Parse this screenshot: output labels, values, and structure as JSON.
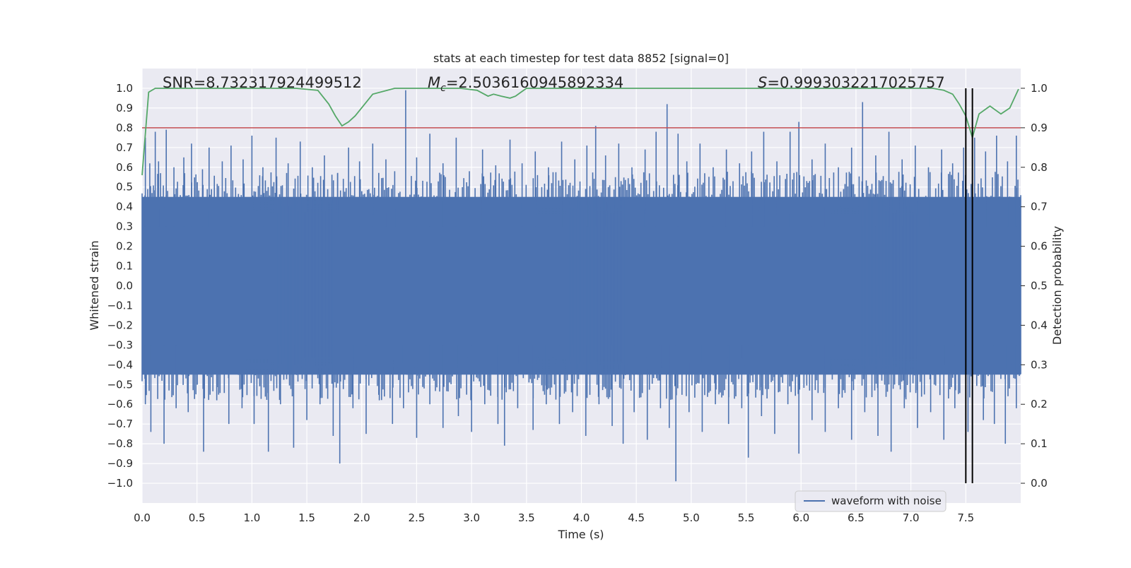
{
  "chart_data": {
    "type": "line",
    "title": "stats at each timestep for test data 8852 [signal=0]",
    "xlabel": "Time (s)",
    "ylabel": "Whitened strain",
    "y2label": "Detection probability",
    "xlim": [
      0.0,
      8.0
    ],
    "ylim": [
      -1.1,
      1.1
    ],
    "y2lim": [
      -0.05,
      1.05
    ],
    "grid": true,
    "x_ticks": [
      "0.0",
      "0.5",
      "1.0",
      "1.5",
      "2.0",
      "2.5",
      "3.0",
      "3.5",
      "4.0",
      "4.5",
      "5.0",
      "5.5",
      "6.0",
      "6.5",
      "7.0",
      "7.5"
    ],
    "y_ticks": [
      "1.0",
      "0.9",
      "0.8",
      "0.7",
      "0.6",
      "0.5",
      "0.4",
      "0.3",
      "0.2",
      "0.1",
      "0.0",
      "−0.1",
      "−0.2",
      "−0.3",
      "−0.4",
      "−0.5",
      "−0.6",
      "−0.7",
      "−0.8",
      "−0.9",
      "−1.0"
    ],
    "y2_ticks": [
      "1.0",
      "0.9",
      "0.8",
      "0.7",
      "0.6",
      "0.5",
      "0.4",
      "0.3",
      "0.2",
      "0.1",
      "0.0"
    ],
    "annotations": {
      "snr": "SNR=8.732317924499512",
      "mc_symbol": "M",
      "mc_sub": "c",
      "mc_value": "=2.5036160945892334",
      "s_symbol": "S",
      "s_value": "=0.9993032217025757"
    },
    "legend": {
      "placement": "lower-right",
      "entries": [
        "waveform with noise"
      ]
    },
    "threshold_line": {
      "y2": 0.9,
      "color": "#c44e52"
    },
    "detection_markers_x": [
      7.5,
      7.56
    ],
    "series": [
      {
        "name": "waveform with noise",
        "axis": "left",
        "color": "#4c72b0",
        "envelope_upper_typical": 0.45,
        "envelope_lower_typical": -0.45,
        "spikes_up": [
          {
            "t": 0.03,
            "v": 0.75
          },
          {
            "t": 0.07,
            "v": 0.62
          },
          {
            "t": 0.12,
            "v": 0.78
          },
          {
            "t": 0.15,
            "v": 0.63
          },
          {
            "t": 0.22,
            "v": 0.79
          },
          {
            "t": 0.29,
            "v": 0.6
          },
          {
            "t": 0.38,
            "v": 0.65
          },
          {
            "t": 0.45,
            "v": 0.72
          },
          {
            "t": 0.55,
            "v": 0.59
          },
          {
            "t": 0.61,
            "v": 0.7
          },
          {
            "t": 0.73,
            "v": 0.63
          },
          {
            "t": 0.81,
            "v": 0.71
          },
          {
            "t": 0.92,
            "v": 0.64
          },
          {
            "t": 1.0,
            "v": 0.76
          },
          {
            "t": 1.1,
            "v": 0.6
          },
          {
            "t": 1.22,
            "v": 0.75
          },
          {
            "t": 1.33,
            "v": 0.62
          },
          {
            "t": 1.44,
            "v": 0.73
          },
          {
            "t": 1.55,
            "v": 0.6
          },
          {
            "t": 1.66,
            "v": 0.66
          },
          {
            "t": 1.78,
            "v": 0.57
          },
          {
            "t": 1.88,
            "v": 0.7
          },
          {
            "t": 1.98,
            "v": 0.63
          },
          {
            "t": 2.1,
            "v": 0.72
          },
          {
            "t": 2.22,
            "v": 0.64
          },
          {
            "t": 2.3,
            "v": 0.58
          },
          {
            "t": 2.4,
            "v": 0.99
          },
          {
            "t": 2.5,
            "v": 0.65
          },
          {
            "t": 2.62,
            "v": 0.77
          },
          {
            "t": 2.74,
            "v": 0.62
          },
          {
            "t": 2.86,
            "v": 0.75
          },
          {
            "t": 2.98,
            "v": 0.58
          },
          {
            "t": 3.1,
            "v": 0.69
          },
          {
            "t": 3.22,
            "v": 0.61
          },
          {
            "t": 3.35,
            "v": 0.74
          },
          {
            "t": 3.46,
            "v": 0.62
          },
          {
            "t": 3.58,
            "v": 0.68
          },
          {
            "t": 3.7,
            "v": 0.6
          },
          {
            "t": 3.82,
            "v": 0.73
          },
          {
            "t": 3.94,
            "v": 0.64
          },
          {
            "t": 4.05,
            "v": 0.71
          },
          {
            "t": 4.13,
            "v": 0.81
          },
          {
            "t": 4.22,
            "v": 0.66
          },
          {
            "t": 4.34,
            "v": 0.72
          },
          {
            "t": 4.46,
            "v": 0.6
          },
          {
            "t": 4.58,
            "v": 0.69
          },
          {
            "t": 4.68,
            "v": 0.78
          },
          {
            "t": 4.78,
            "v": 0.92
          },
          {
            "t": 4.88,
            "v": 0.77
          },
          {
            "t": 4.96,
            "v": 0.63
          },
          {
            "t": 5.08,
            "v": 0.72
          },
          {
            "t": 5.2,
            "v": 0.6
          },
          {
            "t": 5.32,
            "v": 0.69
          },
          {
            "t": 5.44,
            "v": 0.62
          },
          {
            "t": 5.55,
            "v": 0.68
          },
          {
            "t": 5.66,
            "v": 0.78
          },
          {
            "t": 5.78,
            "v": 0.63
          },
          {
            "t": 5.9,
            "v": 0.78
          },
          {
            "t": 5.98,
            "v": 0.83
          },
          {
            "t": 6.1,
            "v": 0.64
          },
          {
            "t": 6.22,
            "v": 0.72
          },
          {
            "t": 6.34,
            "v": 0.6
          },
          {
            "t": 6.46,
            "v": 0.7
          },
          {
            "t": 6.56,
            "v": 0.93
          },
          {
            "t": 6.68,
            "v": 0.66
          },
          {
            "t": 6.8,
            "v": 0.78
          },
          {
            "t": 6.92,
            "v": 0.64
          },
          {
            "t": 7.04,
            "v": 0.71
          },
          {
            "t": 7.16,
            "v": 0.6
          },
          {
            "t": 7.28,
            "v": 0.69
          },
          {
            "t": 7.38,
            "v": 0.62
          },
          {
            "t": 7.48,
            "v": 0.7
          },
          {
            "t": 7.58,
            "v": 0.75
          },
          {
            "t": 7.68,
            "v": 0.68
          },
          {
            "t": 7.78,
            "v": 0.76
          },
          {
            "t": 7.88,
            "v": 0.63
          },
          {
            "t": 7.96,
            "v": 0.76
          }
        ],
        "spikes_down": [
          {
            "t": 0.03,
            "v": -0.6
          },
          {
            "t": 0.08,
            "v": -0.74
          },
          {
            "t": 0.2,
            "v": -0.8
          },
          {
            "t": 0.31,
            "v": -0.62
          },
          {
            "t": 0.42,
            "v": -0.64
          },
          {
            "t": 0.56,
            "v": -0.84
          },
          {
            "t": 0.68,
            "v": -0.58
          },
          {
            "t": 0.79,
            "v": -0.7
          },
          {
            "t": 0.91,
            "v": -0.62
          },
          {
            "t": 1.02,
            "v": -0.7
          },
          {
            "t": 1.15,
            "v": -0.84
          },
          {
            "t": 1.26,
            "v": -0.6
          },
          {
            "t": 1.38,
            "v": -0.82
          },
          {
            "t": 1.5,
            "v": -0.68
          },
          {
            "t": 1.62,
            "v": -0.6
          },
          {
            "t": 1.74,
            "v": -0.76
          },
          {
            "t": 1.8,
            "v": -0.9
          },
          {
            "t": 1.92,
            "v": -0.62
          },
          {
            "t": 2.04,
            "v": -0.75
          },
          {
            "t": 2.16,
            "v": -0.58
          },
          {
            "t": 2.28,
            "v": -0.7
          },
          {
            "t": 2.38,
            "v": -0.62
          },
          {
            "t": 2.5,
            "v": -0.77
          },
          {
            "t": 2.62,
            "v": -0.6
          },
          {
            "t": 2.74,
            "v": -0.72
          },
          {
            "t": 2.88,
            "v": -0.66
          },
          {
            "t": 3.0,
            "v": -0.74
          },
          {
            "t": 3.12,
            "v": -0.6
          },
          {
            "t": 3.24,
            "v": -0.7
          },
          {
            "t": 3.3,
            "v": -0.81
          },
          {
            "t": 3.42,
            "v": -0.62
          },
          {
            "t": 3.56,
            "v": -0.73
          },
          {
            "t": 3.68,
            "v": -0.6
          },
          {
            "t": 3.8,
            "v": -0.7
          },
          {
            "t": 3.92,
            "v": -0.64
          },
          {
            "t": 4.04,
            "v": -0.76
          },
          {
            "t": 4.16,
            "v": -0.6
          },
          {
            "t": 4.28,
            "v": -0.71
          },
          {
            "t": 4.38,
            "v": -0.8
          },
          {
            "t": 4.48,
            "v": -0.64
          },
          {
            "t": 4.6,
            "v": -0.78
          },
          {
            "t": 4.72,
            "v": -0.62
          },
          {
            "t": 4.8,
            "v": -0.72
          },
          {
            "t": 4.86,
            "v": -0.99
          },
          {
            "t": 4.98,
            "v": -0.64
          },
          {
            "t": 5.1,
            "v": -0.74
          },
          {
            "t": 5.22,
            "v": -0.6
          },
          {
            "t": 5.34,
            "v": -0.7
          },
          {
            "t": 5.46,
            "v": -0.62
          },
          {
            "t": 5.52,
            "v": -0.87
          },
          {
            "t": 5.64,
            "v": -0.66
          },
          {
            "t": 5.76,
            "v": -0.75
          },
          {
            "t": 5.88,
            "v": -0.6
          },
          {
            "t": 5.98,
            "v": -0.85
          },
          {
            "t": 6.1,
            "v": -0.68
          },
          {
            "t": 6.22,
            "v": -0.74
          },
          {
            "t": 6.34,
            "v": -0.62
          },
          {
            "t": 6.46,
            "v": -0.78
          },
          {
            "t": 6.58,
            "v": -0.64
          },
          {
            "t": 6.7,
            "v": -0.76
          },
          {
            "t": 6.82,
            "v": -0.84
          },
          {
            "t": 6.94,
            "v": -0.62
          },
          {
            "t": 7.06,
            "v": -0.72
          },
          {
            "t": 7.18,
            "v": -0.64
          },
          {
            "t": 7.3,
            "v": -0.78
          },
          {
            "t": 7.4,
            "v": -0.62
          },
          {
            "t": 7.52,
            "v": -0.74
          },
          {
            "t": 7.56,
            "v": -0.83
          },
          {
            "t": 7.66,
            "v": -0.68
          },
          {
            "t": 7.76,
            "v": -0.7
          },
          {
            "t": 7.86,
            "v": -0.8
          },
          {
            "t": 7.96,
            "v": -0.62
          }
        ]
      },
      {
        "name": "detection probability",
        "axis": "right",
        "color": "#55a868",
        "x": [
          0.0,
          0.06,
          0.12,
          0.3,
          0.6,
          1.0,
          1.4,
          1.6,
          1.7,
          1.76,
          1.82,
          1.88,
          1.94,
          2.1,
          2.3,
          2.6,
          2.9,
          3.05,
          3.15,
          3.2,
          3.27,
          3.35,
          3.4,
          3.45,
          3.5,
          3.6,
          3.8,
          4.2,
          4.6,
          5.0,
          5.4,
          5.8,
          6.2,
          6.6,
          7.0,
          7.2,
          7.3,
          7.38,
          7.44,
          7.5,
          7.56,
          7.62,
          7.72,
          7.82,
          7.9,
          7.98
        ],
        "y": [
          0.78,
          0.99,
          1.0,
          1.0,
          1.0,
          1.0,
          1.0,
          0.995,
          0.96,
          0.93,
          0.905,
          0.915,
          0.93,
          0.985,
          1.0,
          1.0,
          1.0,
          0.995,
          0.98,
          0.985,
          0.98,
          0.975,
          0.98,
          0.99,
          1.0,
          1.0,
          1.0,
          1.0,
          1.0,
          1.0,
          1.0,
          1.0,
          1.0,
          1.0,
          1.0,
          1.0,
          0.995,
          0.985,
          0.96,
          0.93,
          0.875,
          0.935,
          0.955,
          0.935,
          0.95,
          0.998
        ]
      }
    ]
  }
}
